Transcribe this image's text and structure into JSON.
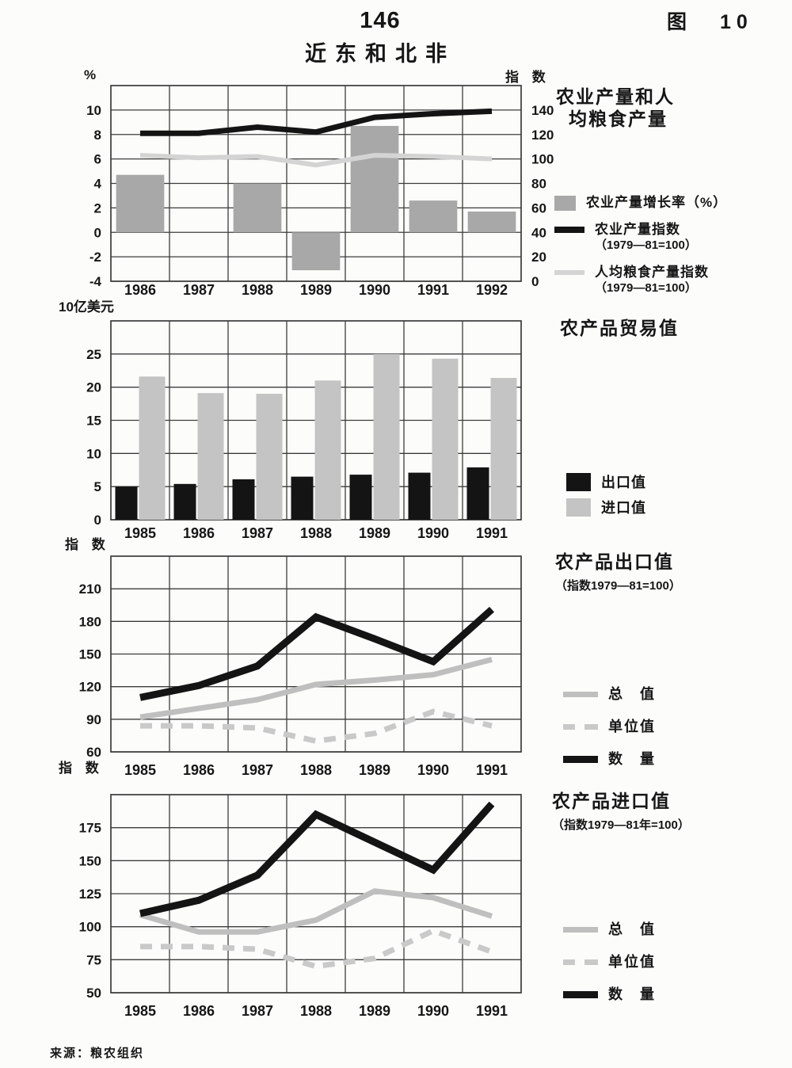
{
  "page": {
    "number": "146",
    "figure_label": "图",
    "figure_number": "10",
    "title": "近东和北非",
    "source": "来源：粮农组织"
  },
  "chart_data": [
    {
      "type": "bar+line",
      "title_lines": [
        "农业产量和人",
        "均粮食产量"
      ],
      "left_axis_label": "%",
      "right_axis_label": "指 数",
      "categories": [
        "1986",
        "1987",
        "1988",
        "1989",
        "1990",
        "1991",
        "1992"
      ],
      "ylim": [
        -4,
        12
      ],
      "yticks": [
        -4,
        -2,
        0,
        2,
        4,
        6,
        8,
        10
      ],
      "right_ylim": [
        0,
        160
      ],
      "right_ticks": [
        0,
        20,
        40,
        60,
        80,
        100,
        120,
        140
      ],
      "right_map": {
        "divide": 10,
        "offset": -4
      },
      "bars": [
        {
          "name": "农业产量增长率（%）",
          "color": "#a8a8a8",
          "values": [
            4.7,
            0,
            4.0,
            -3.1,
            8.7,
            2.6,
            1.7
          ]
        }
      ],
      "lines": [
        {
          "name": "农业产量指数",
          "subtitle": "（1979—81=100）",
          "color": "#141414",
          "width": 7,
          "axis": "right",
          "values": [
            121,
            121,
            126,
            122,
            134,
            137,
            139
          ]
        },
        {
          "name": "人均粮食产量指数",
          "subtitle": "（1979—81=100）",
          "color": "#d4d4d4",
          "width": 6,
          "axis": "right",
          "values": [
            103,
            101,
            102,
            95,
            103,
            102,
            100
          ]
        }
      ]
    },
    {
      "type": "bar",
      "title": "农产品贸易值",
      "unit_label": "10亿美元",
      "categories": [
        "1985",
        "1986",
        "1987",
        "1988",
        "1989",
        "1990",
        "1991"
      ],
      "ylim": [
        0,
        30
      ],
      "yticks": [
        0,
        5,
        10,
        15,
        20,
        25
      ],
      "bars": [
        {
          "name": "出口值",
          "color": "#141414",
          "values": [
            5.0,
            5.4,
            6.1,
            6.5,
            6.8,
            7.1,
            7.9
          ]
        },
        {
          "name": "进口值",
          "color": "#c4c4c4",
          "values": [
            21.6,
            19.1,
            19.0,
            21.0,
            25.0,
            24.3,
            21.4
          ]
        }
      ]
    },
    {
      "type": "line",
      "title": "农产品出口值",
      "subtitle": "（指数1979—81=100）",
      "axis_label": "指 数",
      "categories": [
        "1985",
        "1986",
        "1987",
        "1988",
        "1989",
        "1990",
        "1991"
      ],
      "ylim": [
        60,
        240
      ],
      "yticks": [
        60,
        90,
        120,
        150,
        180,
        210
      ],
      "lines": [
        {
          "name": "总　值",
          "color": "#bfbfbf",
          "width": 7,
          "values": [
            92,
            100,
            108,
            122,
            126,
            131,
            145
          ]
        },
        {
          "name": "单位值",
          "color": "#c9c9c9",
          "width": 7,
          "dash": "15 11",
          "values": [
            84,
            84,
            82,
            70,
            77,
            97,
            84
          ]
        },
        {
          "name": "数　量",
          "color": "#141414",
          "width": 9,
          "values": [
            110,
            121,
            139,
            184,
            164,
            143,
            191
          ]
        }
      ]
    },
    {
      "type": "line",
      "title": "农产品进口值",
      "subtitle": "（指数1979—81年=100）",
      "axis_label": "指 数",
      "categories": [
        "1985",
        "1986",
        "1987",
        "1988",
        "1989",
        "1990",
        "1991"
      ],
      "ylim": [
        50,
        200
      ],
      "yticks": [
        50,
        75,
        100,
        125,
        150,
        175
      ],
      "lines": [
        {
          "name": "总　值",
          "color": "#bfbfbf",
          "width": 7,
          "values": [
            109,
            96,
            96,
            105,
            127,
            122,
            108
          ]
        },
        {
          "name": "单位值",
          "color": "#c9c9c9",
          "width": 7,
          "dash": "15 11",
          "values": [
            85,
            85,
            83,
            70,
            76,
            97,
            81
          ]
        },
        {
          "name": "数　量",
          "color": "#141414",
          "width": 9,
          "values": [
            110,
            120,
            139,
            185,
            164,
            143,
            193
          ]
        }
      ]
    }
  ]
}
